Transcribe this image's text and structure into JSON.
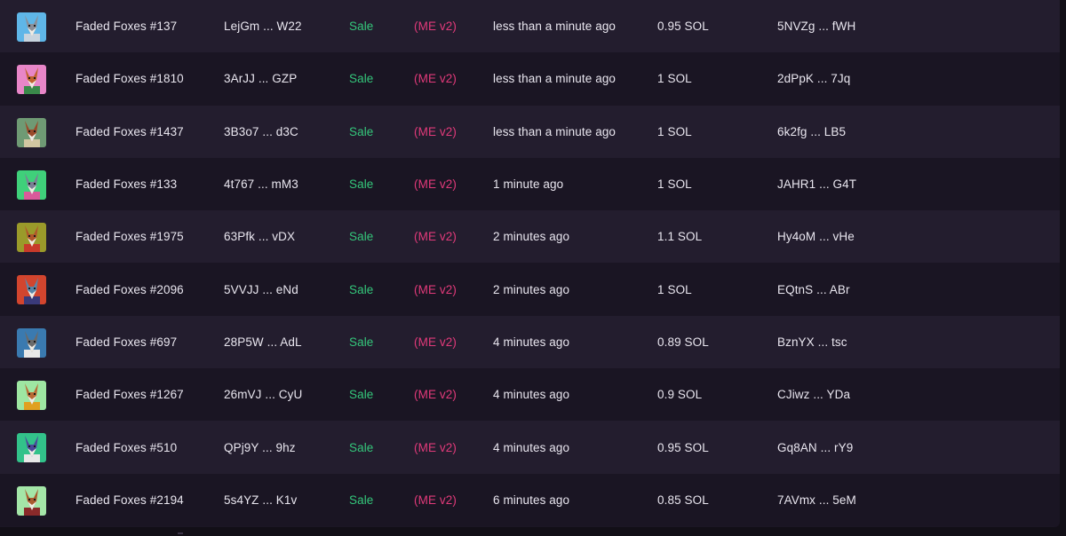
{
  "activity": {
    "rows": [
      {
        "name": "Faded Foxes #137",
        "mint": "LejGm ... W22",
        "type": "Sale",
        "market": "(ME v2)",
        "time": "less than a minute ago",
        "price": "0.95 SOL",
        "buyer": "5NVZg ... fWH",
        "thumb_bg": "#5fb6e8",
        "fur": "#8a8f9a",
        "shirt": "#c8d4de"
      },
      {
        "name": "Faded Foxes #1810",
        "mint": "3ArJJ ... GZP",
        "type": "Sale",
        "market": "(ME v2)",
        "time": "less than a minute ago",
        "price": "1 SOL",
        "buyer": "2dPpK ... 7Jq",
        "thumb_bg": "#e886c8",
        "fur": "#c0622e",
        "shirt": "#3a8a4a"
      },
      {
        "name": "Faded Foxes #1437",
        "mint": "3B3o7 ... d3C",
        "type": "Sale",
        "market": "(ME v2)",
        "time": "less than a minute ago",
        "price": "1 SOL",
        "buyer": "6k2fg ... LB5",
        "thumb_bg": "#6f9a74",
        "fur": "#9a4a2a",
        "shirt": "#d2c7a2"
      },
      {
        "name": "Faded Foxes #133",
        "mint": "4t767 ... mM3",
        "type": "Sale",
        "market": "(ME v2)",
        "time": "1 minute ago",
        "price": "1 SOL",
        "buyer": "JAHR1 ... G4T",
        "thumb_bg": "#3fd07a",
        "fur": "#7a7f95",
        "shirt": "#d95a9a"
      },
      {
        "name": "Faded Foxes #1975",
        "mint": "63Pfk ... vDX",
        "type": "Sale",
        "market": "(ME v2)",
        "time": "2 minutes ago",
        "price": "1.1 SOL",
        "buyer": "Hy4oM ... vHe",
        "thumb_bg": "#9a9a2a",
        "fur": "#b0562a",
        "shirt": "#c83a2a"
      },
      {
        "name": "Faded Foxes #2096",
        "mint": "5VVJJ ... eNd",
        "type": "Sale",
        "market": "(ME v2)",
        "time": "2 minutes ago",
        "price": "1 SOL",
        "buyer": "EQtnS ... ABr",
        "thumb_bg": "#d2452e",
        "fur": "#5a86a8",
        "shirt": "#3a3a7a"
      },
      {
        "name": "Faded Foxes #697",
        "mint": "28P5W ... AdL",
        "type": "Sale",
        "market": "(ME v2)",
        "time": "4 minutes ago",
        "price": "0.89 SOL",
        "buyer": "BznYX ... tsc",
        "thumb_bg": "#3a7ab0",
        "fur": "#6a6a6a",
        "shirt": "#e8e8e8"
      },
      {
        "name": "Faded Foxes #1267",
        "mint": "26mVJ ... CyU",
        "type": "Sale",
        "market": "(ME v2)",
        "time": "4 minutes ago",
        "price": "0.9 SOL",
        "buyer": "CJiwz ... YDa",
        "thumb_bg": "#9ee6a2",
        "fur": "#b86a34",
        "shirt": "#e0a020"
      },
      {
        "name": "Faded Foxes #510",
        "mint": "QPj9Y ... 9hz",
        "type": "Sale",
        "market": "(ME v2)",
        "time": "4 minutes ago",
        "price": "0.95 SOL",
        "buyer": "Gq8AN ... rY9",
        "thumb_bg": "#32c28a",
        "fur": "#4a4a9a",
        "shirt": "#e8e8e8"
      },
      {
        "name": "Faded Foxes #2194",
        "mint": "5s4YZ ... K1v",
        "type": "Sale",
        "market": "(ME v2)",
        "time": "6 minutes ago",
        "price": "0.85 SOL",
        "buyer": "7AVmx ... 5eM",
        "thumb_bg": "#a4e6a8",
        "fur": "#a85a2e",
        "shirt": "#8a2a2a"
      }
    ]
  }
}
